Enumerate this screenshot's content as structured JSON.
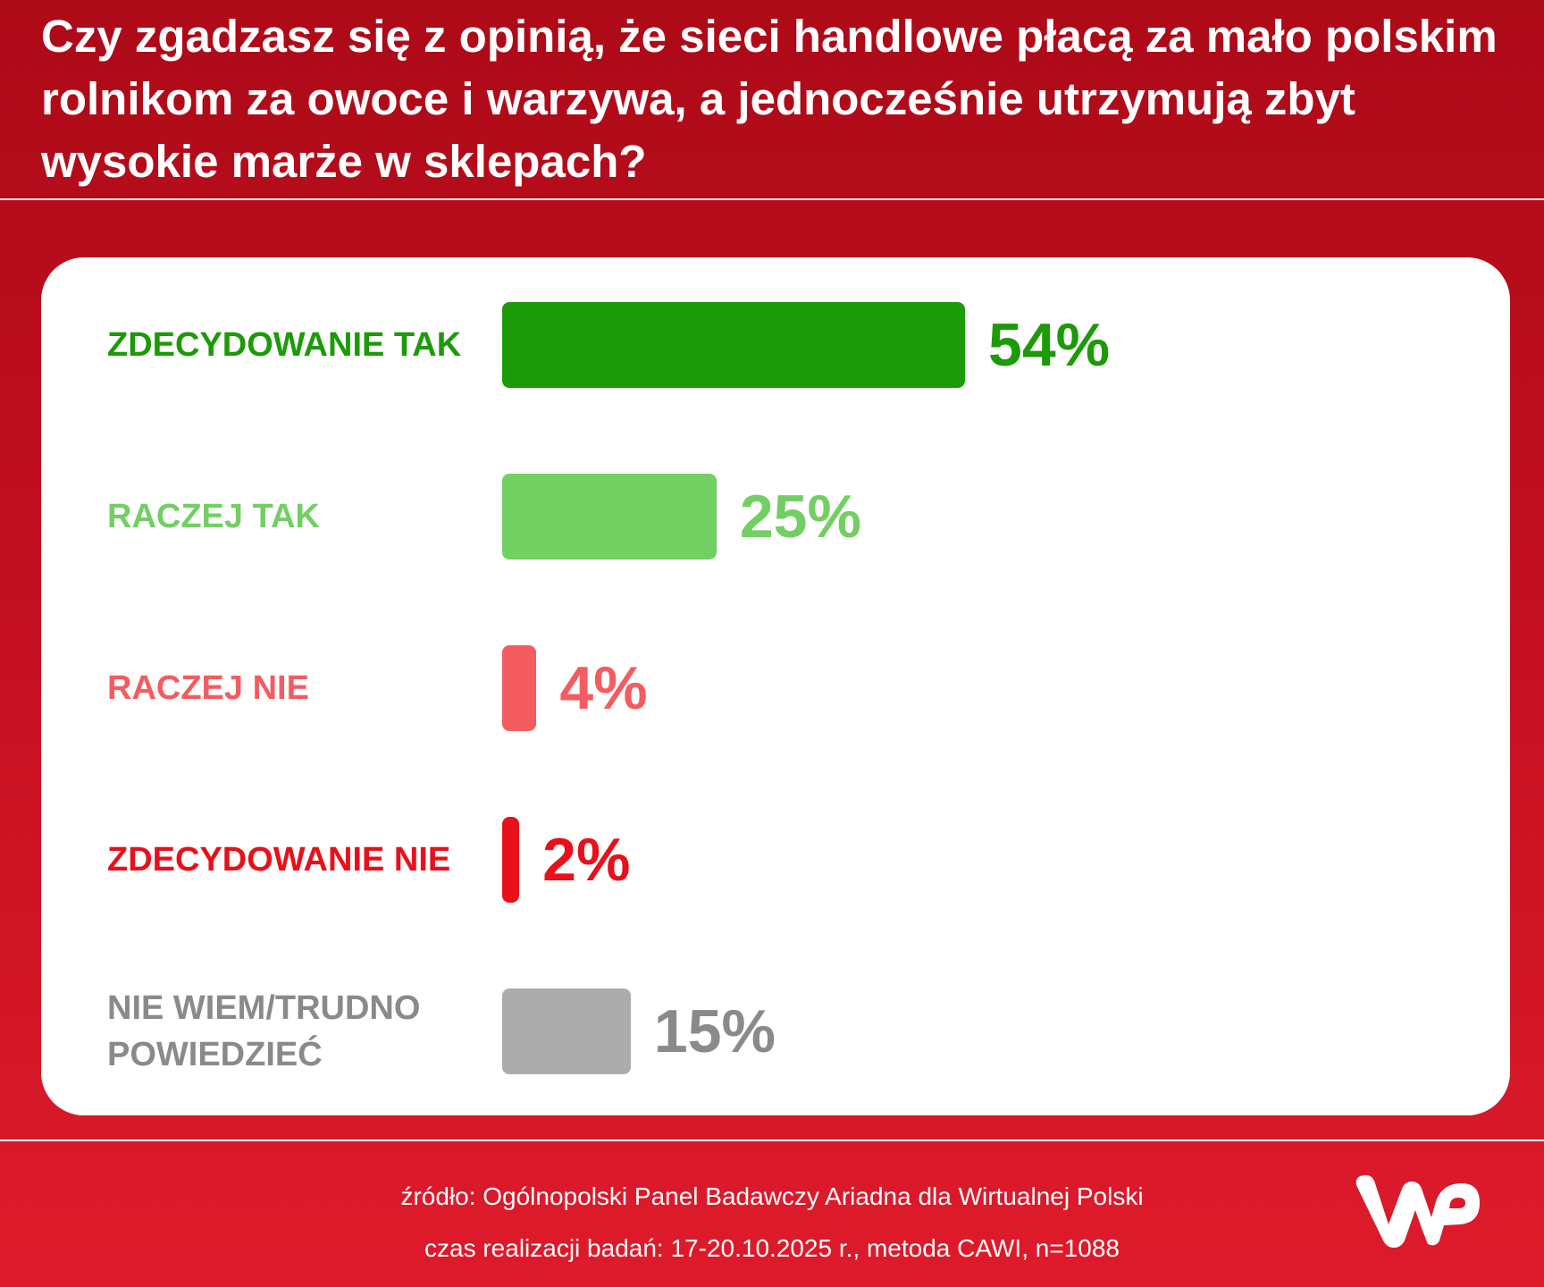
{
  "title": "Czy zgadzasz się z opinią, że sieci handlowe płacą za mało polskim rolnikom za owoce i warzywa, a jednocześnie utrzymują zbyt wysokie marże w sklepach?",
  "chart_data": {
    "type": "bar",
    "orientation": "horizontal",
    "categories": [
      "ZDECYDOWANIE TAK",
      "RACZEJ TAK",
      "RACZEJ NIE",
      "ZDECYDOWANIE NIE",
      "NIE WIEM/TRUDNO POWIEDZIEĆ"
    ],
    "values": [
      54,
      25,
      4,
      2,
      15
    ],
    "value_labels": [
      "54%",
      "25%",
      "4%",
      "2%",
      "15%"
    ],
    "colors": [
      "#1c9a07",
      "#72cf62",
      "#f45c60",
      "#e8101a",
      "#acacac"
    ],
    "text_colors": [
      "#1c9a07",
      "#72cf62",
      "#f45c60",
      "#e8101a",
      "#8a8a8a"
    ],
    "xlim": [
      0,
      54
    ],
    "grid": false
  },
  "footer": {
    "source": "źródło: Ogólnopolski Panel Badawczy Ariadna dla Wirtualnej Polski",
    "details": "czas realizacji badań: 17-20.10.2025 r., metoda CAWI, n=1088"
  },
  "logo": {
    "name": "wp-logo",
    "text": "WP",
    "color": "#ffffff"
  }
}
